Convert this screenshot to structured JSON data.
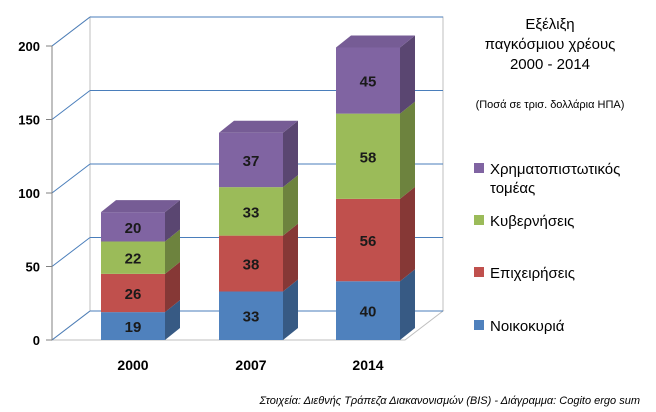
{
  "chart_data": {
    "type": "bar",
    "stacked": true,
    "three_d": true,
    "title_lines": [
      "Εξέλιξη",
      "παγκόσμιου χρέους",
      "2000 - 2014"
    ],
    "subtitle": "(Ποσά σε τρισ. δολλάρια ΗΠΑ)",
    "categories": [
      "2000",
      "2007",
      "2014"
    ],
    "series": [
      {
        "name": "Νοικοκυριά",
        "values": [
          19,
          33,
          40
        ],
        "color": "#4f81bd"
      },
      {
        "name": "Επιχειρήσεις",
        "values": [
          26,
          38,
          56
        ],
        "color": "#c0504d"
      },
      {
        "name": "Κυβερνήσεις",
        "values": [
          22,
          33,
          58
        ],
        "color": "#9bbb59"
      },
      {
        "name": "Χρηματοπιστωτικός τομέας",
        "legend_lines": [
          "Χρηματοπιστωτικός",
          "τομέας"
        ],
        "values": [
          20,
          37,
          45
        ],
        "color": "#8064a2"
      }
    ],
    "yticks": [
      "0",
      "50",
      "100",
      "150",
      "200"
    ],
    "ylim": [
      0,
      200
    ],
    "grid": true,
    "legend_position": "right",
    "source": "Στοιχεία: Διεθνής Τράπεζα Διακανονισμών (BIS) - Διάγραμμα: Cogito ergo sum"
  }
}
